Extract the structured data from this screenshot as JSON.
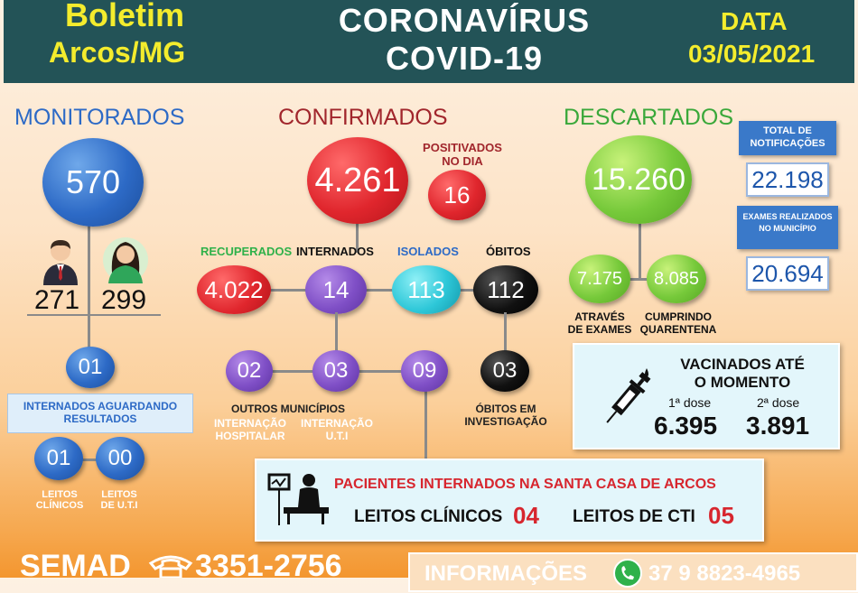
{
  "header": {
    "brand_line1": "Boletim",
    "brand_line2": "Arcos/MG",
    "title_line1": "CORONAVÍRUS",
    "title_line2": "COVID-19",
    "date_label": "DATA",
    "date_value": "03/05/2021"
  },
  "monitorados": {
    "label": "MONITORADOS",
    "value": "570",
    "men": "271",
    "women": "299",
    "internados_aguardando": "01",
    "internados_aguardando_label_1": "INTERNADOS AGUARDANDO",
    "internados_aguardando_label_2": "RESULTADOS",
    "leitos_clinicos_value": "01",
    "leitos_uti_value": "00",
    "leitos_clinicos_label_1": "LEITOS",
    "leitos_clinicos_label_2": "CLÍNICOS",
    "leitos_uti_label_1": "LEITOS",
    "leitos_uti_label_2": "DE U.T.I"
  },
  "confirmados": {
    "label": "CONFIRMADOS",
    "value": "4.261",
    "positivados_label_1": "POSITIVADOS",
    "positivados_label_2": "NO DIA",
    "positivados_value": "16",
    "recuperados_label": "RECUPERADOS",
    "recuperados_value": "4.022",
    "internados_label": "INTERNADOS",
    "internados_value": "14",
    "isolados_label": "ISOLADOS",
    "isolados_value": "113",
    "obitos_label": "ÓBITOS",
    "obitos_value": "112",
    "outros_municipios_label": "OUTROS MUNICÍPIOS",
    "internacao_hospitalar_value": "02",
    "internacao_uti_value": "03",
    "santa_casa_value": "09",
    "internacao_hospitalar_label_1": "INTERNAÇÃO",
    "internacao_hospitalar_label_2": "HOSPITALAR",
    "internacao_uti_label_1": "INTERNAÇÃO",
    "internacao_uti_label_2": "U.T.I",
    "obitos_investigacao_value": "03",
    "obitos_investigacao_label_1": "ÓBITOS EM",
    "obitos_investigacao_label_2": "INVESTIGAÇÃO"
  },
  "descartados": {
    "label": "DESCARTADOS",
    "value": "15.260",
    "exames_value": "7.175",
    "quarentena_value": "8.085",
    "exames_label_1": "ATRAVÉS",
    "exames_label_2": "DE EXAMES",
    "quarentena_label_1": "CUMPRINDO",
    "quarentena_label_2": "QUARENTENA"
  },
  "notificacoes": {
    "label_1": "TOTAL DE",
    "label_2": "NOTIFICAÇÕES",
    "value": "22.198"
  },
  "exames": {
    "label_1": "EXAMES REALIZADOS",
    "label_2": "NO MUNICÍPIO",
    "value": "20.694"
  },
  "vacinados": {
    "title_1": "VACINADOS ATÉ",
    "title_2": "O MOMENTO",
    "dose1_label": "1ª dose",
    "dose2_label": "2ª dose",
    "dose1_value": "6.395",
    "dose2_value": "3.891"
  },
  "santa_casa": {
    "title": "PACIENTES INTERNADOS NA SANTA CASA DE ARCOS",
    "leitos_clinicos_label": "LEITOS CLÍNICOS",
    "leitos_clinicos_value": "04",
    "leitos_cti_label": "LEITOS DE CTI",
    "leitos_cti_value": "05"
  },
  "footer": {
    "semad_label": "SEMAD",
    "semad_phone": "3351-2756",
    "info_label": "INFORMAÇÕES",
    "info_phone": "37 9 8823-4965"
  },
  "colors": {
    "header_bg": "#235357",
    "header_yellow": "#f4ec2d",
    "monitorados_blue": "#2d6ac6",
    "confirmados_red": "#a1262c",
    "descartados_green": "#3aa83a"
  }
}
